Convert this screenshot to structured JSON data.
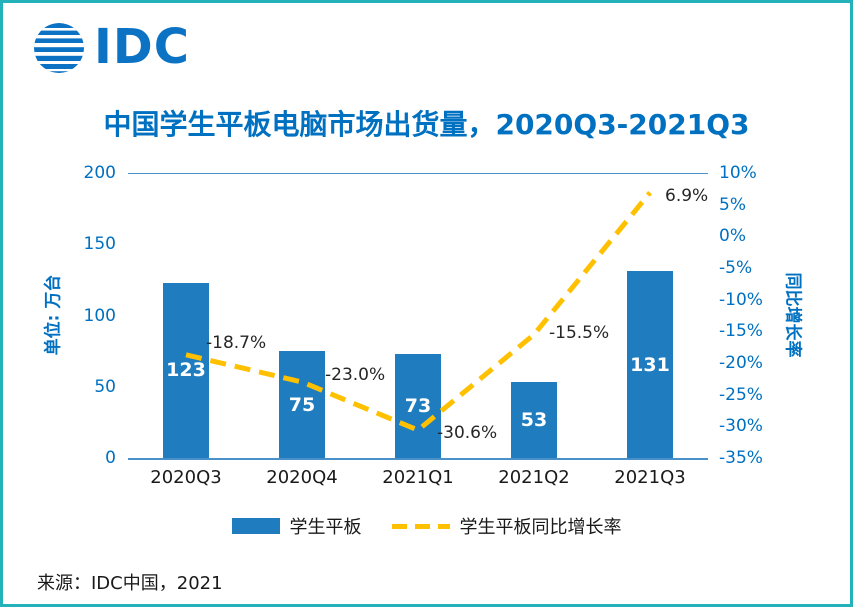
{
  "brand": {
    "logo_text": "IDC"
  },
  "title": "中国学生平板电脑市场出货量，2020Q3-2021Q3",
  "source": "来源：IDC中国，2021",
  "left_axis": {
    "title": "单位: 万台",
    "ticks": [
      "200",
      "150",
      "100",
      "50",
      "0"
    ]
  },
  "right_axis": {
    "title": "同比增长率",
    "ticks": [
      "10%",
      "5%",
      "0%",
      "-5%",
      "-10%",
      "-15%",
      "-20%",
      "-25%",
      "-30%",
      "-35%"
    ]
  },
  "legend": [
    {
      "type": "bar",
      "label": "学生平板"
    },
    {
      "type": "line",
      "label": "学生平板同比增长率"
    }
  ],
  "chart_data": {
    "type": "bar+line",
    "categories": [
      "2020Q3",
      "2020Q4",
      "2021Q1",
      "2021Q2",
      "2021Q3"
    ],
    "series": [
      {
        "name": "学生平板",
        "type": "bar",
        "axis": "left",
        "values": [
          123,
          75,
          73,
          53,
          131
        ],
        "color": "#1F7DBF"
      },
      {
        "name": "学生平板同比增长率",
        "type": "line",
        "axis": "right",
        "values": [
          -18.7,
          -23.0,
          -30.6,
          -15.5,
          6.9
        ],
        "labels": [
          "-18.7%",
          "-23.0%",
          "-30.6%",
          "-15.5%",
          "6.9%"
        ],
        "color": "#FFC000",
        "style": "dashed"
      }
    ],
    "title": "中国学生平板电脑市场出货量，2020Q3-2021Q3",
    "ylabel_left": "单位: 万台",
    "ylabel_right": "同比增长率",
    "ylim_left": [
      0,
      200
    ],
    "ylim_right": [
      -35,
      10
    ],
    "grid": false,
    "legend_position": "bottom"
  },
  "colors": {
    "bar": "#1F7DBF",
    "line": "#FFC000",
    "blue": "#0070C0",
    "logo": "#0B72C4",
    "border": "#23B2B9",
    "axis_line": "#4A90C9",
    "bar_label": "#FFFFFF",
    "annotation": "#262626",
    "category": "#1A1A1A",
    "text": "#1A1A1A"
  }
}
